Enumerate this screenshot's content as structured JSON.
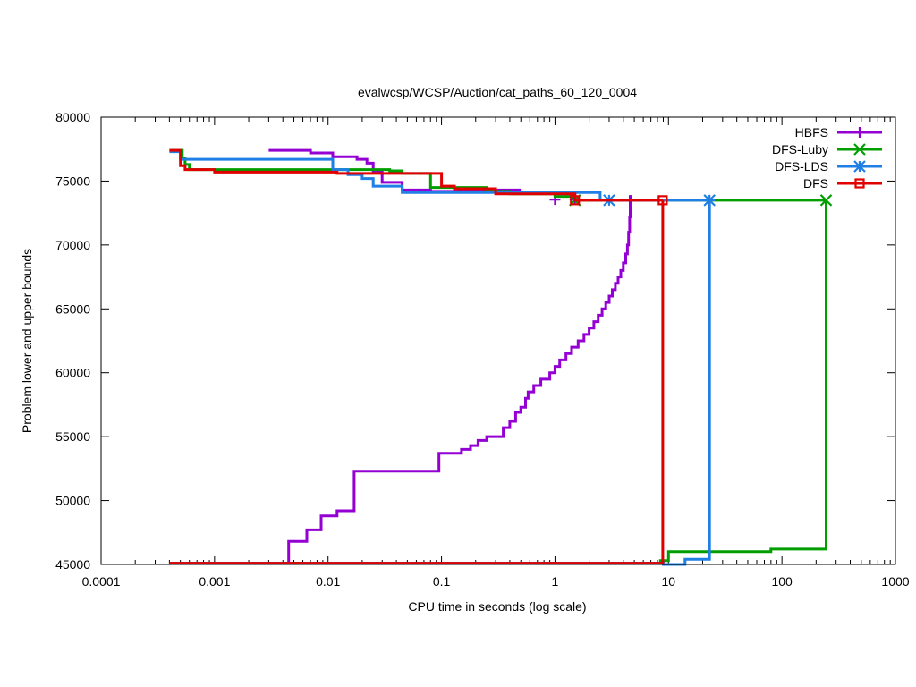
{
  "chart_data": {
    "type": "line",
    "title": "evalwcsp/WCSP/Auction/cat_paths_60_120_0004",
    "xlabel": "CPU time in seconds (log scale)",
    "ylabel": "Problem lower and upper bounds",
    "xscale": "log",
    "xlim": [
      0.0001,
      1000
    ],
    "ylim": [
      45000,
      80000
    ],
    "xticks": [
      0.0001,
      0.001,
      0.01,
      0.1,
      1,
      10,
      100,
      1000
    ],
    "xtick_labels": [
      "0.0001",
      "0.001",
      "0.01",
      "0.1",
      "1",
      "10",
      "100",
      "1000"
    ],
    "yticks": [
      45000,
      50000,
      55000,
      60000,
      65000,
      70000,
      75000,
      80000
    ],
    "ytick_labels": [
      "45000",
      "50000",
      "55000",
      "60000",
      "65000",
      "70000",
      "75000",
      "80000"
    ],
    "grid": false,
    "legend_position": "top-right",
    "series": [
      {
        "name": "HBFS",
        "color": "#9400d3",
        "marker": "plus",
        "upper": [
          [
            0.003,
            77400
          ],
          [
            0.007,
            77400
          ],
          [
            0.007,
            77200
          ],
          [
            0.011,
            77200
          ],
          [
            0.011,
            76900
          ],
          [
            0.018,
            76900
          ],
          [
            0.018,
            76700
          ],
          [
            0.022,
            76700
          ],
          [
            0.022,
            76400
          ],
          [
            0.025,
            76400
          ],
          [
            0.025,
            75700
          ],
          [
            0.03,
            75700
          ],
          [
            0.03,
            74900
          ],
          [
            0.045,
            74900
          ],
          [
            0.045,
            74300
          ],
          [
            0.08,
            74300
          ],
          [
            0.08,
            74200
          ],
          [
            0.2,
            74200
          ],
          [
            0.2,
            74300
          ],
          [
            0.5,
            74300
          ]
        ],
        "lower": [
          [
            0.0045,
            45100
          ],
          [
            0.0045,
            46800
          ],
          [
            0.0065,
            46800
          ],
          [
            0.0065,
            47700
          ],
          [
            0.0087,
            47700
          ],
          [
            0.0087,
            48800
          ],
          [
            0.012,
            48800
          ],
          [
            0.012,
            49200
          ],
          [
            0.017,
            49200
          ],
          [
            0.017,
            52300
          ],
          [
            0.095,
            52300
          ],
          [
            0.095,
            53700
          ],
          [
            0.15,
            53700
          ],
          [
            0.15,
            54000
          ],
          [
            0.18,
            54000
          ],
          [
            0.18,
            54300
          ],
          [
            0.21,
            54300
          ],
          [
            0.21,
            54700
          ],
          [
            0.25,
            54700
          ],
          [
            0.25,
            55000
          ],
          [
            0.35,
            55000
          ],
          [
            0.35,
            55700
          ],
          [
            0.4,
            55700
          ],
          [
            0.4,
            56200
          ],
          [
            0.45,
            56200
          ],
          [
            0.45,
            56900
          ],
          [
            0.5,
            56900
          ],
          [
            0.5,
            57300
          ],
          [
            0.55,
            57300
          ],
          [
            0.55,
            58000
          ],
          [
            0.58,
            58000
          ],
          [
            0.58,
            58500
          ],
          [
            0.65,
            58500
          ],
          [
            0.65,
            59000
          ],
          [
            0.75,
            59000
          ],
          [
            0.75,
            59500
          ],
          [
            0.9,
            59500
          ],
          [
            0.9,
            60000
          ],
          [
            1.0,
            60000
          ],
          [
            1.0,
            60500
          ],
          [
            1.1,
            60500
          ],
          [
            1.1,
            61000
          ],
          [
            1.25,
            61000
          ],
          [
            1.25,
            61500
          ],
          [
            1.4,
            61500
          ],
          [
            1.4,
            62000
          ],
          [
            1.6,
            62000
          ],
          [
            1.6,
            62500
          ],
          [
            1.8,
            62500
          ],
          [
            1.8,
            63000
          ],
          [
            2.0,
            63000
          ],
          [
            2.0,
            63500
          ],
          [
            2.2,
            63500
          ],
          [
            2.2,
            64000
          ],
          [
            2.4,
            64000
          ],
          [
            2.4,
            64500
          ],
          [
            2.6,
            64500
          ],
          [
            2.6,
            65000
          ],
          [
            2.8,
            65000
          ],
          [
            2.8,
            65500
          ],
          [
            3.0,
            65500
          ],
          [
            3.0,
            66000
          ],
          [
            3.2,
            66000
          ],
          [
            3.2,
            66500
          ],
          [
            3.4,
            66500
          ],
          [
            3.4,
            67000
          ],
          [
            3.6,
            67000
          ],
          [
            3.6,
            67500
          ],
          [
            3.8,
            67500
          ],
          [
            3.8,
            68000
          ],
          [
            4.0,
            68000
          ],
          [
            4.0,
            68600
          ],
          [
            4.2,
            68600
          ],
          [
            4.2,
            69300
          ],
          [
            4.35,
            69300
          ],
          [
            4.35,
            70000
          ],
          [
            4.45,
            70000
          ],
          [
            4.45,
            71000
          ],
          [
            4.55,
            71000
          ],
          [
            4.55,
            72200
          ],
          [
            4.6,
            72200
          ],
          [
            4.6,
            73900
          ]
        ],
        "markers": [
          [
            1.0,
            73550
          ],
          [
            1.5,
            73550
          ]
        ]
      },
      {
        "name": "DFS-Luby",
        "color": "#009e00",
        "marker": "x",
        "upper": [
          [
            0.0004,
            77400
          ],
          [
            0.00052,
            77400
          ],
          [
            0.00052,
            76800
          ],
          [
            0.00055,
            76800
          ],
          [
            0.00055,
            76300
          ],
          [
            0.0006,
            76300
          ],
          [
            0.0006,
            75900
          ],
          [
            0.035,
            75900
          ],
          [
            0.035,
            75800
          ],
          [
            0.045,
            75800
          ],
          [
            0.045,
            75600
          ],
          [
            0.08,
            75600
          ],
          [
            0.08,
            74500
          ],
          [
            0.25,
            74500
          ],
          [
            0.25,
            74200
          ],
          [
            0.4,
            74200
          ],
          [
            0.4,
            74000
          ],
          [
            1.0,
            74000
          ],
          [
            1.0,
            73800
          ],
          [
            1.5,
            73800
          ],
          [
            1.5,
            73500
          ],
          [
            245,
            73500
          ]
        ],
        "lower": [
          [
            0.0004,
            45100
          ],
          [
            8.5,
            45100
          ],
          [
            8.5,
            45300
          ],
          [
            10,
            45300
          ],
          [
            10,
            46000
          ],
          [
            80,
            46000
          ],
          [
            80,
            46200
          ],
          [
            245,
            46200
          ],
          [
            245,
            73500
          ]
        ],
        "markers": [
          [
            1.5,
            73500
          ],
          [
            245,
            73500
          ]
        ]
      },
      {
        "name": "DFS-LDS",
        "color": "#1f7fe5",
        "marker": "star",
        "upper": [
          [
            0.0004,
            77300
          ],
          [
            0.0005,
            77300
          ],
          [
            0.0005,
            76700
          ],
          [
            0.011,
            76700
          ],
          [
            0.011,
            75900
          ],
          [
            0.015,
            75900
          ],
          [
            0.015,
            75500
          ],
          [
            0.02,
            75500
          ],
          [
            0.02,
            75200
          ],
          [
            0.025,
            75200
          ],
          [
            0.025,
            74600
          ],
          [
            0.045,
            74600
          ],
          [
            0.045,
            74100
          ],
          [
            2.5,
            74100
          ],
          [
            2.5,
            73500
          ],
          [
            23,
            73500
          ]
        ],
        "lower": [
          [
            0.0004,
            45100
          ],
          [
            9,
            45100
          ],
          [
            9,
            45000
          ],
          [
            14,
            45000
          ],
          [
            14,
            45400
          ],
          [
            23,
            45400
          ],
          [
            23,
            73500
          ]
        ],
        "markers": [
          [
            3.0,
            73500
          ],
          [
            23,
            73500
          ]
        ]
      },
      {
        "name": "DFS",
        "color": "#e00000",
        "marker": "square",
        "upper": [
          [
            0.0004,
            77400
          ],
          [
            0.0005,
            77400
          ],
          [
            0.0005,
            76200
          ],
          [
            0.00055,
            76200
          ],
          [
            0.00055,
            75900
          ],
          [
            0.001,
            75900
          ],
          [
            0.001,
            75700
          ],
          [
            0.012,
            75700
          ],
          [
            0.012,
            75600
          ],
          [
            0.1,
            75600
          ],
          [
            0.1,
            74600
          ],
          [
            0.13,
            74600
          ],
          [
            0.13,
            74400
          ],
          [
            0.3,
            74400
          ],
          [
            0.3,
            74000
          ],
          [
            1.5,
            74000
          ],
          [
            1.5,
            73500
          ],
          [
            8.9,
            73500
          ]
        ],
        "lower": [
          [
            0.0004,
            45100
          ],
          [
            8.9,
            45100
          ],
          [
            8.9,
            73500
          ]
        ],
        "markers": [
          [
            1.5,
            73500
          ],
          [
            8.9,
            73500
          ]
        ]
      }
    ]
  }
}
